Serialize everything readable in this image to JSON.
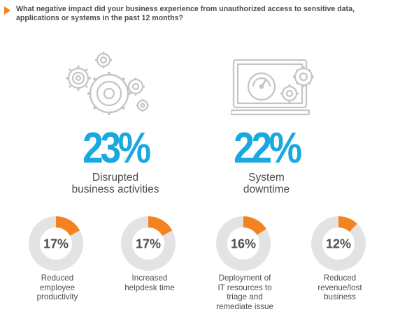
{
  "question": "What negative impact did your business experience from unauthorized access to sensitive data,\napplications or systems in the past 12 months?",
  "icons": {
    "left_illustration": "gears-icon",
    "right_illustration": "laptop-speedometer-gears-icon",
    "bullet": "triangle-arrow-icon"
  },
  "colors": {
    "accent": "#f58220",
    "highlight": "#1aa8e0",
    "track": "#e3e3e3",
    "text": "#4d4d4d",
    "illustration": "#c4c4c4"
  },
  "chart_data": [
    {
      "type": "stat",
      "items": [
        {
          "value": 23,
          "display": "23%",
          "label": "Disrupted\nbusiness activities"
        },
        {
          "value": 22,
          "display": "22%",
          "label": "System\ndowntime"
        }
      ]
    },
    {
      "type": "pie",
      "variant": "donut",
      "items": [
        {
          "value": 17,
          "display": "17%",
          "label": "Reduced\nemployee\nproductivity"
        },
        {
          "value": 17,
          "display": "17%",
          "label": "Increased\nhelpdesk time"
        },
        {
          "value": 16,
          "display": "16%",
          "label": "Deployment of\nIT resources to\ntriage and\nremediate issue"
        },
        {
          "value": 12,
          "display": "12%",
          "label": "Reduced\nrevenue/lost\nbusiness"
        }
      ]
    }
  ]
}
